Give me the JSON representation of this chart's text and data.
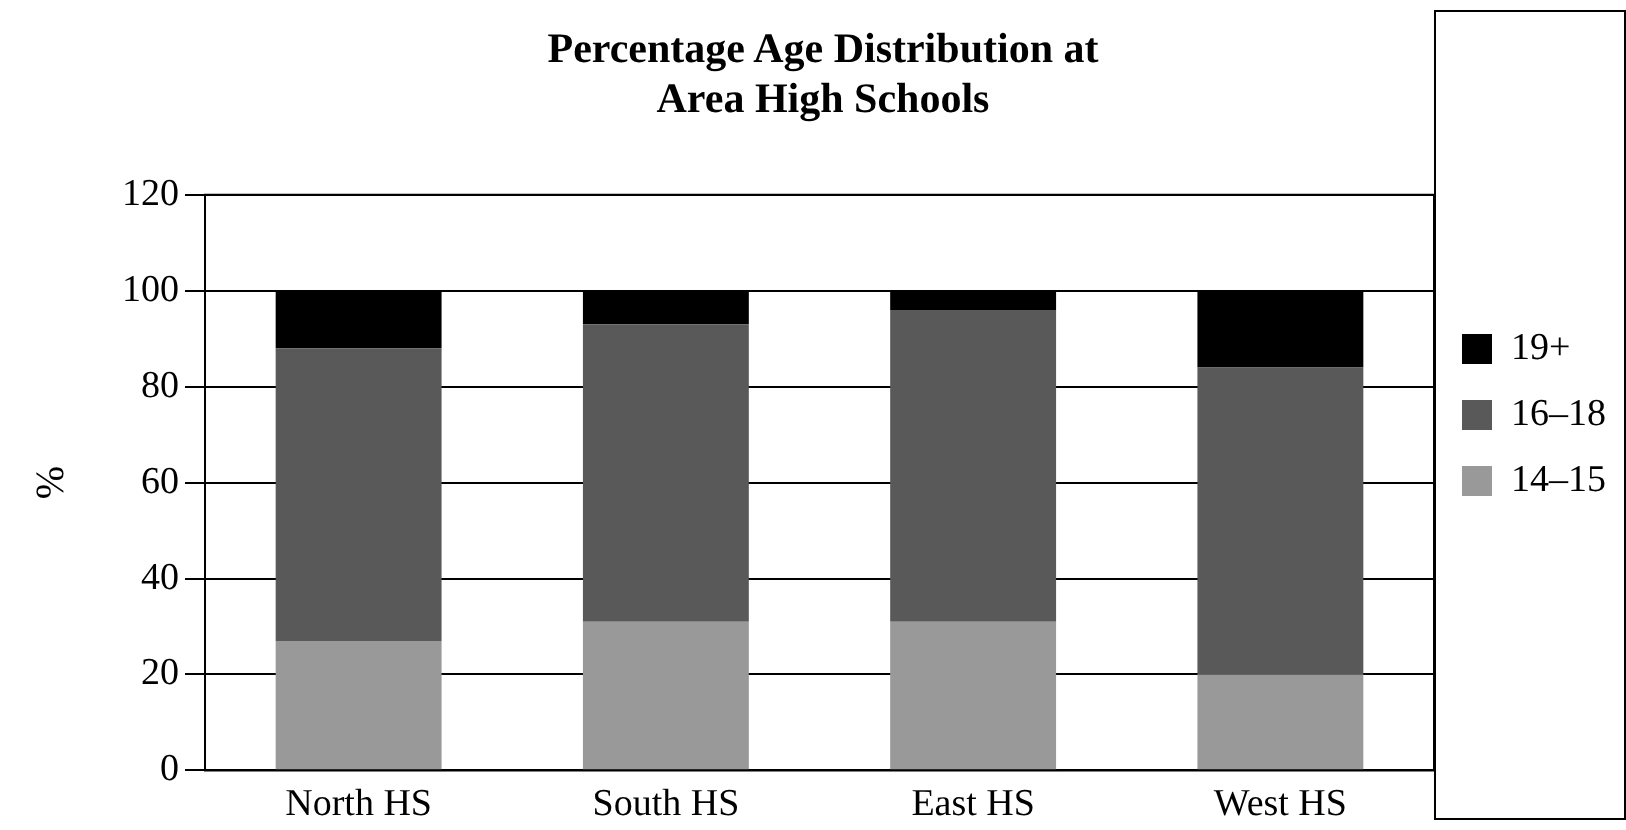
{
  "chart_data": {
    "type": "bar",
    "title": "Percentage Age Distribution at\nArea High Schools",
    "ylabel": "%",
    "categories": [
      "North HS",
      "South HS",
      "East HS",
      "West HS"
    ],
    "stacked": true,
    "series": [
      {
        "name": "14–15",
        "color": "#999999",
        "values": [
          27,
          31,
          31,
          20
        ]
      },
      {
        "name": "16–18",
        "color": "#595959",
        "values": [
          61,
          62,
          65,
          64
        ]
      },
      {
        "name": "19+",
        "color": "#000000",
        "values": [
          12,
          7,
          4,
          16
        ]
      }
    ],
    "ylim": [
      0,
      120
    ],
    "yticks": [
      0,
      20,
      40,
      60,
      80,
      100,
      120
    ],
    "grid": "y",
    "legend": "right"
  }
}
